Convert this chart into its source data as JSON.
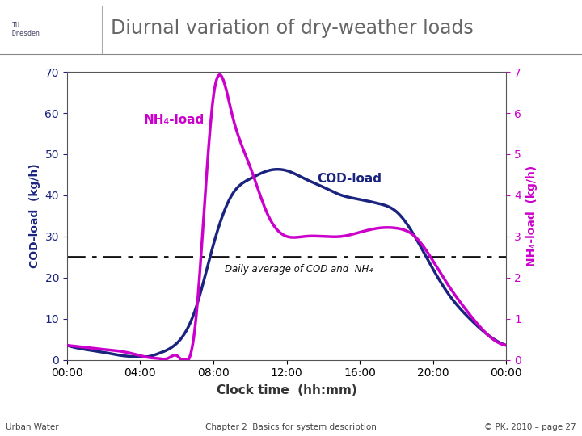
{
  "title": "Diurnal variation of dry-weather loads",
  "xlabel": "Clock time  (hh:mm)",
  "ylabel_left": "COD-load  (kg/h)",
  "ylabel_right": "NH₄-load  (kg/h)",
  "ylabel_left_color": "#1a237e",
  "ylabel_right_color": "#cc00cc",
  "left_ylim": [
    0,
    70
  ],
  "right_ylim": [
    0,
    7
  ],
  "left_yticks": [
    0,
    10,
    20,
    30,
    40,
    50,
    60,
    70
  ],
  "right_yticks": [
    0,
    1,
    2,
    3,
    4,
    5,
    6,
    7
  ],
  "xtick_labels": [
    "00:00",
    "04:00",
    "08:00",
    "12:00",
    "16:00",
    "20:00",
    "00:00"
  ],
  "daily_average": 25,
  "bg_color": "#ffffff",
  "plot_bg_color": "#ffffff",
  "COD_color": "#1a237e",
  "NH4_color": "#cc00cc",
  "avg_line_color": "#111111",
  "header_line_color": "#aaaaaa",
  "footer_text_left": "Urban Water",
  "footer_text_center": "Chapter 2  Basics for system description",
  "footer_text_right": "© PK, 2010 – page 27",
  "NH4_label": "NH₄-load",
  "COD_label": "COD-load",
  "avg_label": "Daily average of COD and  NH₄",
  "COD_knots_h": [
    0,
    1,
    2,
    3,
    4,
    4.5,
    5,
    6,
    7,
    8,
    9,
    10,
    11,
    12,
    13,
    14,
    15,
    16,
    17,
    18,
    19,
    20,
    21,
    22,
    23,
    24
  ],
  "COD_knots_v": [
    3.5,
    2.5,
    1.8,
    1.0,
    0.7,
    0.8,
    1.5,
    4.0,
    12,
    28,
    40,
    44,
    46,
    46,
    44,
    42,
    40,
    39,
    38,
    36,
    30,
    22,
    15,
    10,
    6,
    3.5
  ],
  "NH4_knots_h": [
    0,
    1,
    2,
    3,
    4,
    4.5,
    5,
    5.5,
    6,
    7,
    8,
    9,
    10,
    11,
    12,
    13,
    14,
    15,
    16,
    17,
    18,
    19,
    20,
    21,
    22,
    23,
    24
  ],
  "NH4_knots_v": [
    3.5,
    3.0,
    2.5,
    2.0,
    1.0,
    0.5,
    0.3,
    0.3,
    1.0,
    8.0,
    64,
    60,
    47,
    35,
    30,
    30,
    30,
    30,
    31,
    32,
    32,
    30,
    24,
    17,
    11,
    6,
    3.5
  ]
}
